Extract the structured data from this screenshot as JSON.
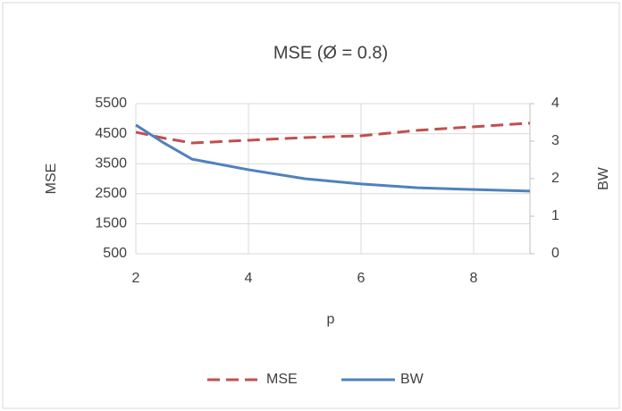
{
  "chart_data": {
    "type": "line",
    "title": "MSE (Ø = 0.8)",
    "x_label": "p",
    "y_label": "MSE",
    "y2_label": "BW",
    "x": [
      2,
      2.5,
      3,
      4,
      5,
      6,
      7,
      8,
      9
    ],
    "series": [
      {
        "name": "MSE",
        "color": "#c0504d",
        "dash": true,
        "values": [
          4550,
          4350,
          4190,
          4280,
          4370,
          4430,
          4610,
          4730,
          4850
        ]
      },
      {
        "name": "BW",
        "color": "#4f81bd",
        "axis": "y2",
        "values": [
          3.43,
          2.95,
          2.52,
          2.24,
          2.0,
          1.86,
          1.76,
          1.71,
          1.67
        ]
      }
    ],
    "xlim": [
      2,
      9
    ],
    "xticks": [
      2,
      4,
      6,
      8
    ],
    "ylim": [
      500,
      5500
    ],
    "yticks": [
      500,
      1500,
      2500,
      3500,
      4500,
      5500
    ],
    "y2lim": [
      0,
      4
    ],
    "y2ticks": [
      0,
      1,
      2,
      3,
      4
    ],
    "grid": true,
    "legend": "bottom"
  }
}
